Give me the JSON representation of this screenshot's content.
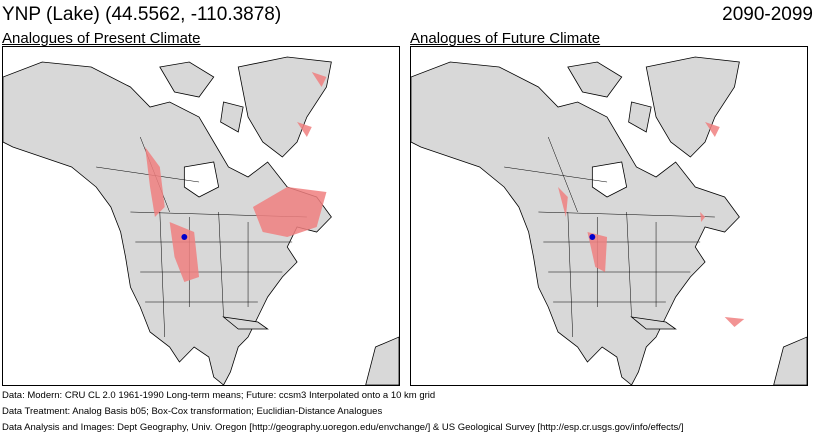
{
  "header": {
    "title": "YNP (Lake)  (44.5562, -110.3878)",
    "period": "2090-2099"
  },
  "panels": [
    {
      "title": "Analogues of Present Climate",
      "highlight_color": "#f08080",
      "site_marker_color": "#0000cc"
    },
    {
      "title": "Analogues of Future Climate",
      "highlight_color": "#f08080",
      "site_marker_color": "#0000cc"
    }
  ],
  "colors": {
    "land": "#d8d8d8",
    "ocean": "#ffffff",
    "borders": "#000000"
  },
  "footer": [
    "Data:  Modern: CRU CL 2.0 1961-1990 Long-term means; Future: ccsm3 Interpolated onto a 10 km grid",
    "Data Treatment:  Analog Basis b05; Box-Cox transformation; Euclidian-Distance Analogues",
    "Data Analysis and Images:  Dept Geography, Univ. Oregon [http://geography.uoregon.edu/envchange/] & US Geological Survey [http://esp.cr.usgs.gov/info/effects/]"
  ]
}
